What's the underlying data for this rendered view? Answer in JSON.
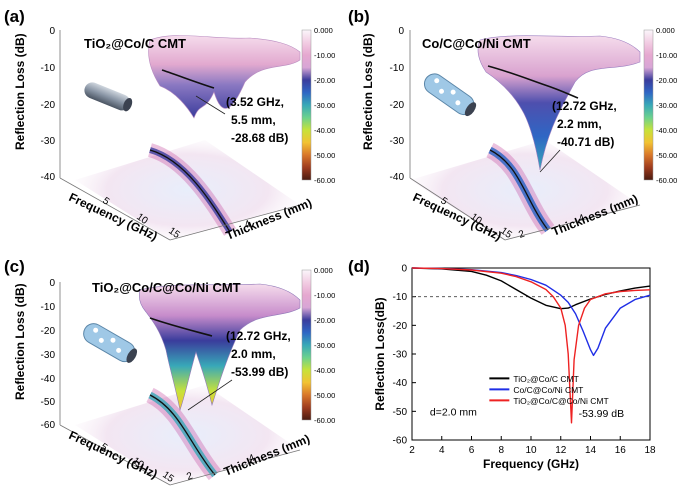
{
  "panels": {
    "a": {
      "letter": "(a)",
      "title": "TiO₂@Co/C CMT",
      "annotation": [
        "(3.52 GHz,",
        "5.5 mm,",
        "-28.68 dB)"
      ],
      "z_label": "Reflection Loss (dB)",
      "z_ticks": [
        "0",
        "-10",
        "-20",
        "-30",
        "-40"
      ],
      "x_label": "Frequency (GHz)",
      "x_ticks": [
        "5",
        "10",
        "15"
      ],
      "y_label": "Thickness (mm)",
      "y_ticks": [
        "4"
      ]
    },
    "b": {
      "letter": "(b)",
      "title": "Co/C@Co/Ni CMT",
      "annotation": [
        "(12.72 GHz,",
        "2.2 mm,",
        "-40.71 dB)"
      ],
      "z_label": "Reflection Loss (dB)",
      "z_ticks": [
        "0",
        "-10",
        "-20",
        "-30",
        "-40"
      ],
      "x_label": "Frequency (GHz)",
      "x_ticks": [
        "5",
        "10",
        "15"
      ],
      "y_label": "Thickness (mm)",
      "y_ticks": [
        "2",
        "4"
      ]
    },
    "c": {
      "letter": "(c)",
      "title": "TiO₂@Co/C@Co/Ni CMT",
      "annotation": [
        "(12.72 GHz,",
        "2.0 mm,",
        "-53.99 dB)"
      ],
      "z_label": "Reflection Loss (dB)",
      "z_ticks": [
        "0",
        "-10",
        "-20",
        "-30",
        "-40",
        "-50",
        "-60"
      ],
      "x_label": "Frequency (GHz)",
      "x_ticks": [
        "5",
        "10",
        "15"
      ],
      "y_label": "Thickness (mm)",
      "y_ticks": [
        "2",
        "4"
      ]
    }
  },
  "colorbar": {
    "labels": [
      "0.000",
      "-10.00",
      "-20.00",
      "-30.00",
      "-40.00",
      "-50.00",
      "-60.00"
    ],
    "colors": [
      "#fbf6fb",
      "#f2cde3",
      "#e6a8d0",
      "#d8a6d6",
      "#3a3c9c",
      "#2f66c4",
      "#38a8b8",
      "#6bd18e",
      "#c7e23a",
      "#f2c233",
      "#d9772a",
      "#9e3b1e",
      "#4a1b10"
    ]
  },
  "chart_data": [
    {
      "type": "line",
      "panel": "(d)",
      "xlabel": "Frequency (GHz)",
      "ylabel": "Reflection Loss(dB)",
      "xlim": [
        2,
        18
      ],
      "ylim": [
        -60,
        0
      ],
      "xticks": [
        2,
        4,
        6,
        8,
        10,
        12,
        14,
        16,
        18
      ],
      "yticks": [
        0,
        -10,
        -20,
        -30,
        -40,
        -50,
        -60
      ],
      "reference_line": -10,
      "annotation_thickness": "d=2.0 mm",
      "annotation_min": "-53.99 dB",
      "legend_position": "center-right",
      "series": [
        {
          "name": "TiO₂@Co/C CMT",
          "color": "#000000",
          "x": [
            2,
            4,
            6,
            7,
            8,
            9,
            10,
            11,
            12,
            12.5,
            13,
            14,
            15,
            16,
            17,
            18
          ],
          "y": [
            0,
            -0.3,
            -1.2,
            -2.5,
            -4.5,
            -7.5,
            -10.5,
            -13,
            -14.2,
            -14,
            -12.8,
            -10.8,
            -9.2,
            -8,
            -7,
            -6.3
          ]
        },
        {
          "name": "Co/C@Co/Ni CMT",
          "color": "#1f2ee6",
          "x": [
            2,
            4,
            6,
            8,
            9,
            10,
            11,
            12,
            12.5,
            13,
            13.5,
            14,
            14.2,
            14.5,
            15,
            16,
            17,
            18
          ],
          "y": [
            0,
            -0.2,
            -0.6,
            -1.6,
            -2.6,
            -4,
            -6,
            -9.5,
            -12,
            -16,
            -22,
            -28.5,
            -30.5,
            -28,
            -21,
            -14,
            -11,
            -9.5
          ]
        },
        {
          "name": "TiO₂@Co/C@Co/Ni CMT",
          "color": "#ee2222",
          "x": [
            2,
            4,
            6,
            8,
            9,
            10,
            11,
            11.5,
            12,
            12.3,
            12.5,
            12.72,
            12.9,
            13.2,
            13.6,
            14,
            15,
            16,
            17,
            18
          ],
          "y": [
            0,
            -0.2,
            -0.7,
            -1.8,
            -3,
            -4.8,
            -7.5,
            -10,
            -14,
            -20,
            -30,
            -53.99,
            -32,
            -20,
            -14,
            -11,
            -9,
            -8.2,
            -7.8,
            -7.6
          ]
        }
      ]
    }
  ],
  "panel_d": {
    "letter": "(d)"
  }
}
